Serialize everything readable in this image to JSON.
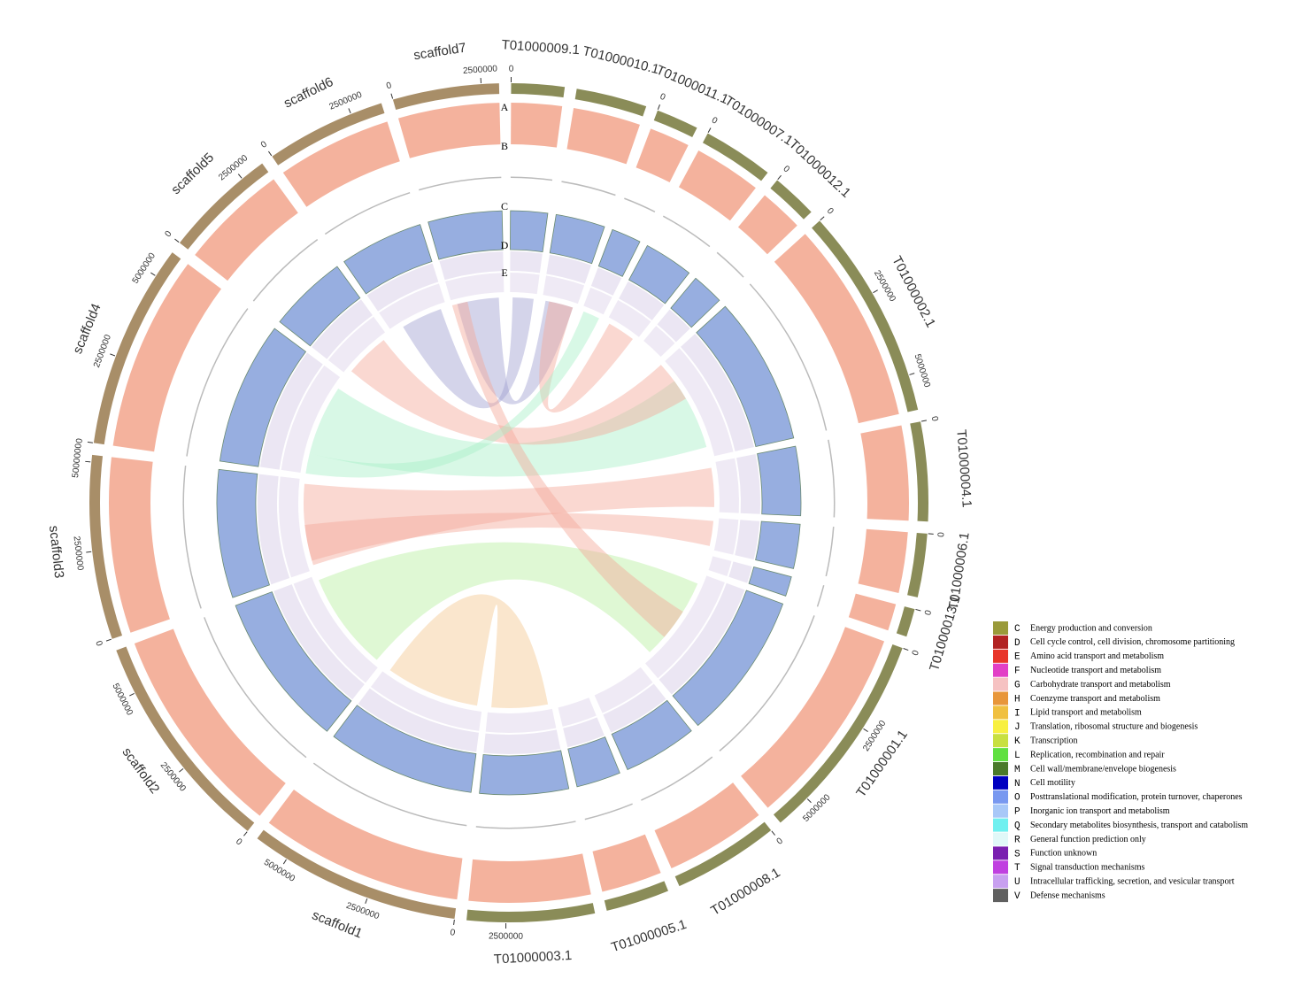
{
  "chart_data": {
    "type": "circos",
    "segments": [
      {
        "name": "T01000009.1",
        "color": "#8a8c58",
        "xlim": [
          0,
          1500000
        ],
        "xticks": [
          0
        ]
      },
      {
        "name": "T01000010.1",
        "color": "#8a8c58",
        "xlim": [
          0,
          2000000
        ],
        "xticks": []
      },
      {
        "name": "T01000011.1",
        "color": "#8a8c58",
        "xlim": [
          0,
          1200000
        ],
        "xticks": [
          0
        ]
      },
      {
        "name": "T01000007.1",
        "color": "#8a8c58",
        "xlim": [
          0,
          2000000
        ],
        "xticks": [
          0
        ]
      },
      {
        "name": "T01000012.1",
        "color": "#8a8c58",
        "xlim": [
          0,
          1300000
        ],
        "xticks": [
          0
        ]
      },
      {
        "name": "T01000002.1",
        "color": "#8a8c58",
        "xlim": [
          0,
          6000000
        ],
        "xticks": [
          0,
          2500000,
          5000000
        ]
      },
      {
        "name": "T01000004.1",
        "color": "#8a8c58",
        "xlim": [
          0,
          2800000
        ],
        "xticks": [
          0
        ]
      },
      {
        "name": "T01000006.1",
        "color": "#8a8c58",
        "xlim": [
          0,
          1800000
        ],
        "xticks": [
          0
        ]
      },
      {
        "name": "T01000013.1",
        "color": "#8a8c58",
        "xlim": [
          0,
          800000
        ],
        "xticks": [
          0
        ]
      },
      {
        "name": "T01000001.1",
        "color": "#8a8c58",
        "xlim": [
          0,
          6000000
        ],
        "xticks": [
          0,
          2500000,
          5000000
        ]
      },
      {
        "name": "T01000008.1",
        "color": "#8a8c58",
        "xlim": [
          0,
          3000000
        ],
        "xticks": [
          0
        ]
      },
      {
        "name": "T01000005.1",
        "color": "#8a8c58",
        "xlim": [
          0,
          1800000
        ],
        "xticks": []
      },
      {
        "name": "T01000003.1",
        "color": "#8a8c58",
        "xlim": [
          0,
          3600000
        ],
        "xticks": [
          2500000
        ]
      },
      {
        "name": "scaffold1",
        "color": "#a88e68",
        "xlim": [
          0,
          6000000
        ],
        "xticks": [
          0,
          2500000,
          5000000
        ]
      },
      {
        "name": "scaffold2",
        "color": "#a88e68",
        "xlim": [
          0,
          6300000
        ],
        "xticks": [
          0,
          2500000,
          5000000
        ]
      },
      {
        "name": "scaffold3",
        "color": "#a88e68",
        "xlim": [
          0,
          5200000
        ],
        "xticks": [
          0,
          2500000,
          5000000
        ]
      },
      {
        "name": "scaffold4",
        "color": "#a88e68",
        "xlim": [
          0,
          5800000
        ],
        "xticks": [
          0,
          2500000,
          5000000
        ]
      },
      {
        "name": "scaffold5",
        "color": "#a88e68",
        "xlim": [
          0,
          3200000
        ],
        "xticks": [
          0,
          2500000
        ]
      },
      {
        "name": "scaffold6",
        "color": "#a88e68",
        "xlim": [
          0,
          3400000
        ],
        "xticks": [
          0,
          2500000
        ]
      },
      {
        "name": "scaffold7",
        "color": "#a88e68",
        "xlim": [
          0,
          3000000
        ],
        "xticks": [
          0,
          2500000
        ]
      }
    ],
    "tracks": [
      "A",
      "B",
      "C",
      "D",
      "E"
    ],
    "legend": [
      {
        "code": "C",
        "label": "Energy production and conversion",
        "color": "#9a9a3a"
      },
      {
        "code": "D",
        "label": " Cell cycle control, cell division, chromosome partitioning",
        "color": "#b22222"
      },
      {
        "code": "E",
        "label": "Amino acid transport and metabolism",
        "color": "#e8352a"
      },
      {
        "code": "F",
        "label": "Nucleotide transport and metabolism",
        "color": "#e23fc6"
      },
      {
        "code": "G",
        "label": "Carbohydrate transport and metabolism",
        "color": "#f6c2c2"
      },
      {
        "code": "H",
        "label": "Coenzyme transport and metabolism",
        "color": "#e8963a"
      },
      {
        "code": "I",
        "label": "Lipid transport and metabolism",
        "color": "#f0c040"
      },
      {
        "code": "J",
        "label": "Translation, ribosomal structure and biogenesis",
        "color": "#f8f040"
      },
      {
        "code": "K",
        "label": "Transcription",
        "color": "#c8e040"
      },
      {
        "code": "L",
        "label": "Replication, recombination and repair",
        "color": "#60e040"
      },
      {
        "code": "M",
        "label": "Cell wall/membrane/envelope biogenesis",
        "color": "#4a7a2a"
      },
      {
        "code": "N",
        "label": "Cell motility",
        "color": "#0000c0"
      },
      {
        "code": "O",
        "label": "Posttranslational modification, protein turnover, chaperones",
        "color": "#7898f0"
      },
      {
        "code": "P",
        "label": "Inorganic ion transport and metabolism",
        "color": "#a8c8f8"
      },
      {
        "code": "Q",
        "label": "Secondary metabolites biosynthesis, transport and catabolism",
        "color": "#70f0f0"
      },
      {
        "code": "R",
        "label": "General function prediction only",
        "color": "#e0f8f8"
      },
      {
        "code": "S",
        "label": "Function unknown",
        "color": "#7a20b0"
      },
      {
        "code": "T",
        "label": "Signal transduction mechanisms",
        "color": "#c040e0"
      },
      {
        "code": "U",
        "label": "Intracellular trafficking, secretion, and vesicular transport",
        "color": "#c8a0f0"
      },
      {
        "code": "V",
        "label": "Defense mechanisms",
        "color": "#606060"
      }
    ]
  }
}
